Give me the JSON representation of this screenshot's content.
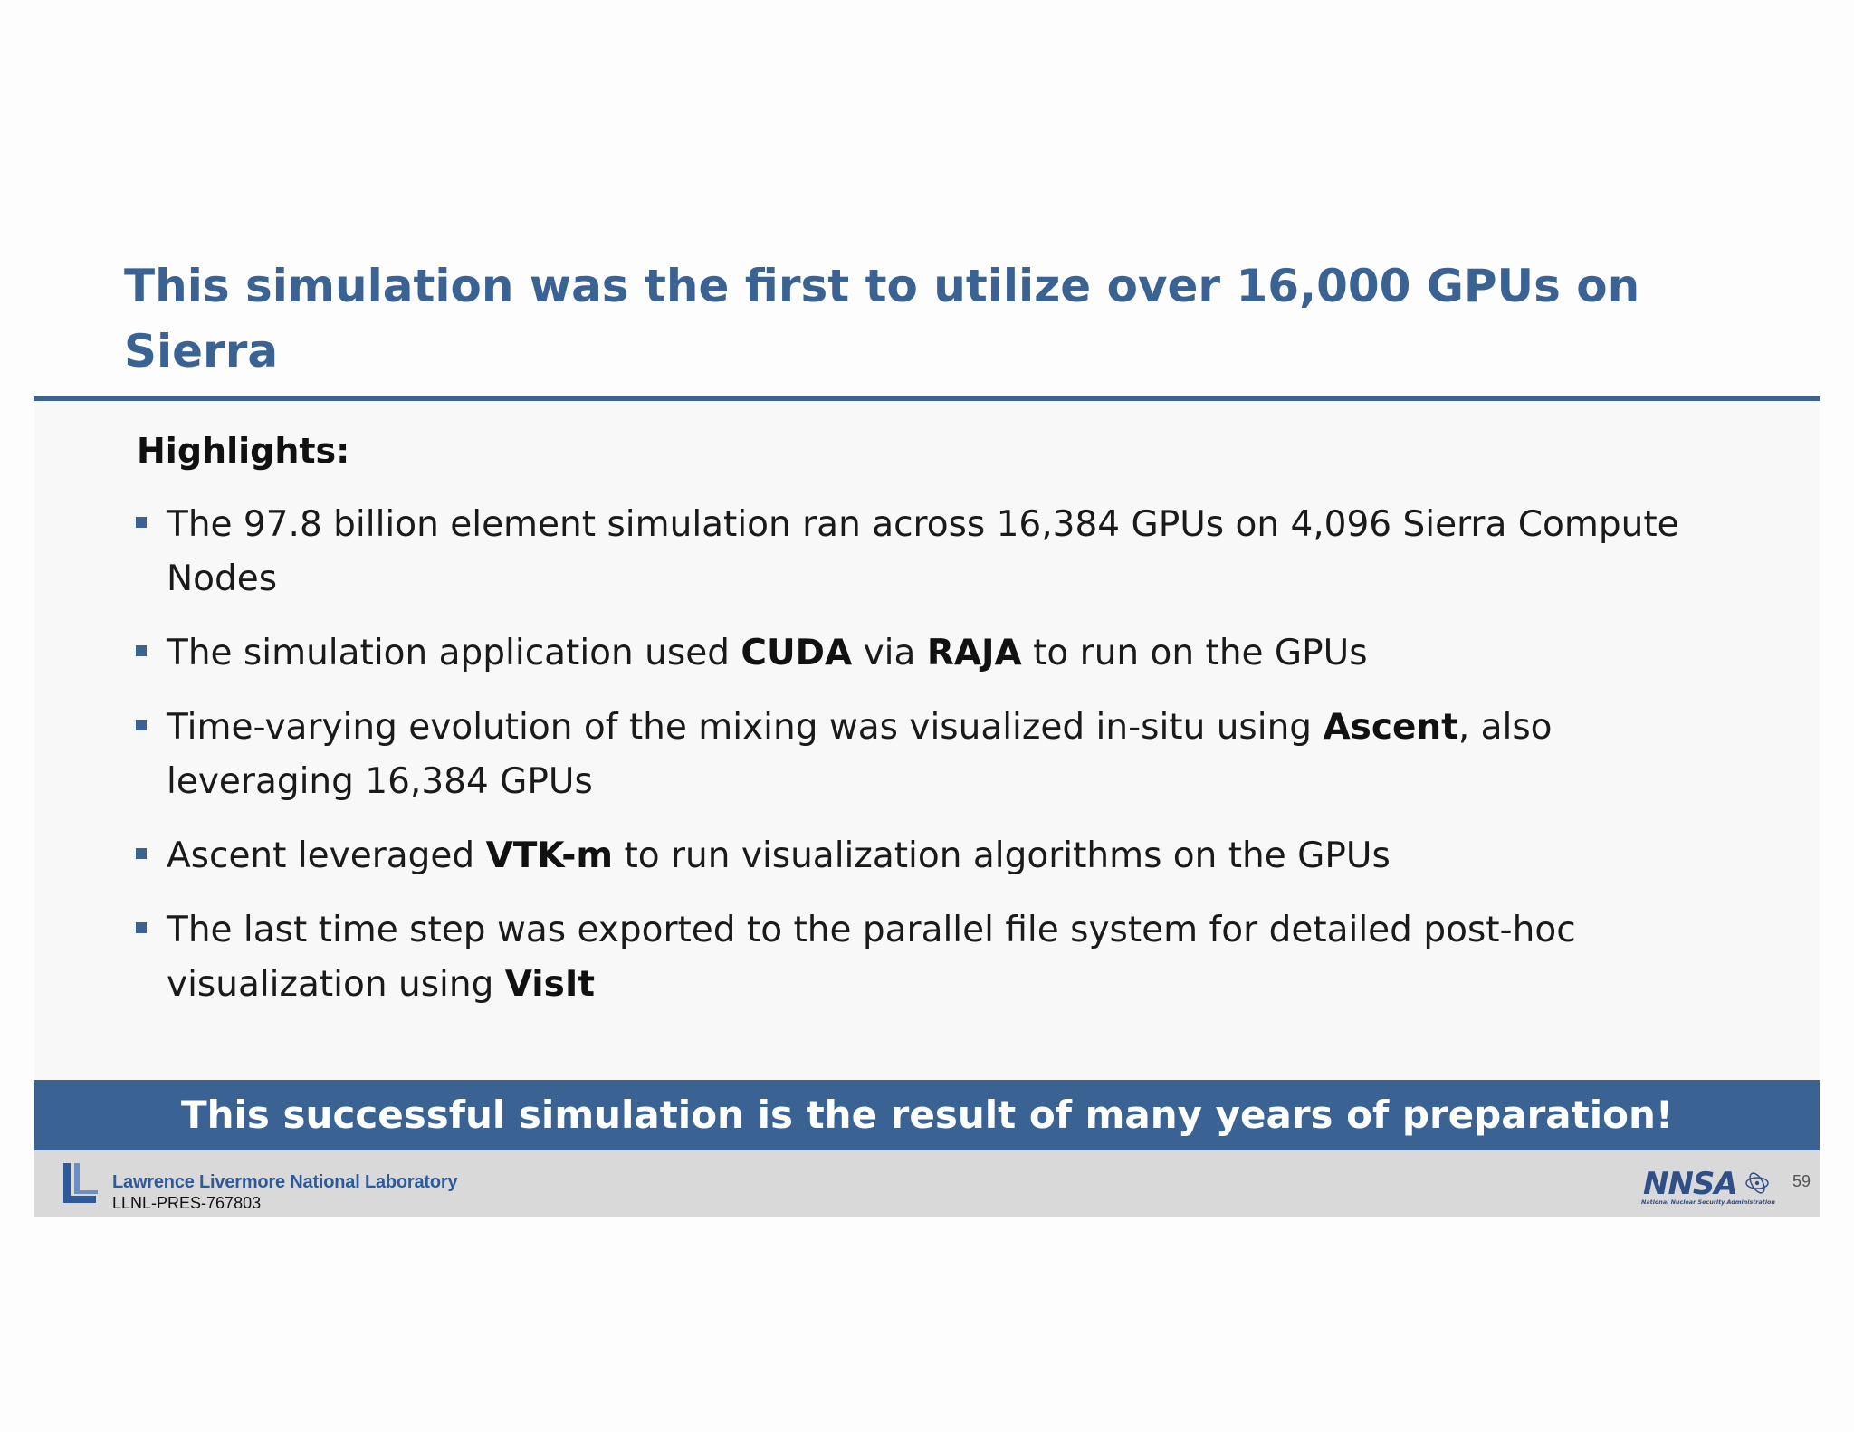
{
  "slide": {
    "title": "This simulation was the first to utilize over 16,000 GPUs on Sierra",
    "highlights_label": "Highlights:",
    "bullets": [
      {
        "parts": [
          {
            "text": "The 97.8 billion element simulation ran across 16,384 GPUs on 4,096 Sierra Compute Nodes",
            "bold": false
          }
        ]
      },
      {
        "parts": [
          {
            "text": "The simulation application used ",
            "bold": false
          },
          {
            "text": "CUDA",
            "bold": true
          },
          {
            "text": " via ",
            "bold": false
          },
          {
            "text": "RAJA",
            "bold": true
          },
          {
            "text": " to run on the GPUs",
            "bold": false
          }
        ]
      },
      {
        "parts": [
          {
            "text": "Time-varying evolution of the mixing was visualized in-situ using ",
            "bold": false
          },
          {
            "text": "Ascent",
            "bold": true
          },
          {
            "text": ", also leveraging 16,384 GPUs",
            "bold": false
          }
        ]
      },
      {
        "parts": [
          {
            "text": "Ascent leveraged ",
            "bold": false
          },
          {
            "text": "VTK-m",
            "bold": true
          },
          {
            "text": " to run visualization algorithms on the GPUs",
            "bold": false
          }
        ]
      },
      {
        "parts": [
          {
            "text": "The last time step was exported to the parallel file system for detailed post-hoc visualization using ",
            "bold": false
          },
          {
            "text": "VisIt",
            "bold": true
          }
        ]
      }
    ],
    "banner_text": "This successful simulation is the result of many years of preparation!"
  },
  "footer": {
    "lab_name": "Lawrence Livermore National Laboratory",
    "doc_id": "LLNL-PRES-767803",
    "nnsa_logo_text": "NNSA",
    "nnsa_subtitle": "National Nuclear Security Administration",
    "page_number": "59"
  },
  "colors": {
    "accent": "#3a6393",
    "footer_bg": "#d9d9d9",
    "llnl_blue": "#2f5a9a"
  },
  "icons": [
    "llnl-logo-icon",
    "nnsa-logo-icon",
    "bullet-square-icon"
  ]
}
